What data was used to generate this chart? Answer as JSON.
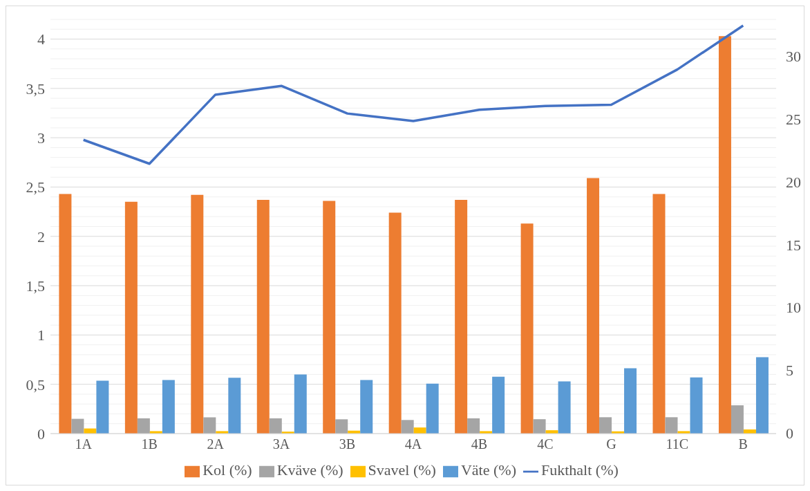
{
  "chart_data": {
    "type": "bar",
    "categories": [
      "1A",
      "1B",
      "2A",
      "3A",
      "3B",
      "4A",
      "4B",
      "4C",
      "G",
      "11C",
      "B"
    ],
    "series": [
      {
        "name": "Kol (%)",
        "color": "#ed7d31",
        "values": [
          2.43,
          2.35,
          2.42,
          2.37,
          2.36,
          2.24,
          2.37,
          2.13,
          2.59,
          2.43,
          4.03
        ]
      },
      {
        "name": "Kväve (%)",
        "color": "#a5a5a5",
        "values": [
          0.15,
          0.155,
          0.165,
          0.155,
          0.145,
          0.138,
          0.155,
          0.146,
          0.166,
          0.166,
          0.287
        ]
      },
      {
        "name": "Svavel (%)",
        "color": "#ffc000",
        "values": [
          0.052,
          0.025,
          0.025,
          0.02,
          0.03,
          0.062,
          0.025,
          0.034,
          0.023,
          0.025,
          0.042
        ]
      },
      {
        "name": "Väte (%)",
        "color": "#5b9bd5",
        "values": [
          0.536,
          0.544,
          0.566,
          0.6,
          0.544,
          0.507,
          0.577,
          0.53,
          0.662,
          0.569,
          0.775
        ]
      },
      {
        "name": "Fukthalt (%)",
        "type": "line",
        "axis": "y2",
        "color": "#4472c4",
        "values": [
          23.4,
          21.5,
          27.0,
          27.7,
          25.5,
          24.9,
          25.8,
          26.1,
          26.2,
          29.0,
          32.5
        ]
      }
    ],
    "ylim": [
      0,
      4.2
    ],
    "yticks": [
      {
        "value": 0,
        "label": "0"
      },
      {
        "value": 0.1,
        "label": null
      },
      {
        "value": 0.2,
        "label": null
      },
      {
        "value": 0.3,
        "label": null
      },
      {
        "value": 0.4,
        "label": null
      },
      {
        "value": 0.5,
        "label": "0,5"
      },
      {
        "value": 0.6,
        "label": null
      },
      {
        "value": 0.7,
        "label": null
      },
      {
        "value": 0.8,
        "label": null
      },
      {
        "value": 0.9,
        "label": null
      },
      {
        "value": 1,
        "label": "1"
      },
      {
        "value": 1.1,
        "label": null
      },
      {
        "value": 1.2,
        "label": null
      },
      {
        "value": 1.3,
        "label": null
      },
      {
        "value": 1.4,
        "label": null
      },
      {
        "value": 1.5,
        "label": "1,5"
      },
      {
        "value": 1.6,
        "label": null
      },
      {
        "value": 1.7,
        "label": null
      },
      {
        "value": 1.8,
        "label": null
      },
      {
        "value": 1.9,
        "label": null
      },
      {
        "value": 2,
        "label": "2"
      },
      {
        "value": 2.1,
        "label": null
      },
      {
        "value": 2.2,
        "label": null
      },
      {
        "value": 2.3,
        "label": null
      },
      {
        "value": 2.4,
        "label": null
      },
      {
        "value": 2.5,
        "label": "2,5"
      },
      {
        "value": 2.6,
        "label": null
      },
      {
        "value": 2.7,
        "label": null
      },
      {
        "value": 2.8,
        "label": null
      },
      {
        "value": 2.9,
        "label": null
      },
      {
        "value": 3,
        "label": "3"
      },
      {
        "value": 3.1,
        "label": null
      },
      {
        "value": 3.2,
        "label": null
      },
      {
        "value": 3.3,
        "label": null
      },
      {
        "value": 3.4,
        "label": null
      },
      {
        "value": 3.5,
        "label": "3,5"
      },
      {
        "value": 3.6,
        "label": null
      },
      {
        "value": 3.7,
        "label": null
      },
      {
        "value": 3.8,
        "label": null
      },
      {
        "value": 3.9,
        "label": null
      },
      {
        "value": 4,
        "label": "4"
      },
      {
        "value": 4.1,
        "label": null
      },
      {
        "value": 4.2,
        "label": null
      }
    ],
    "y2lim": [
      0,
      33
    ],
    "y2ticks": [
      0,
      5,
      10,
      15,
      20,
      25,
      30
    ],
    "grid": "y",
    "legend": "bottom"
  }
}
